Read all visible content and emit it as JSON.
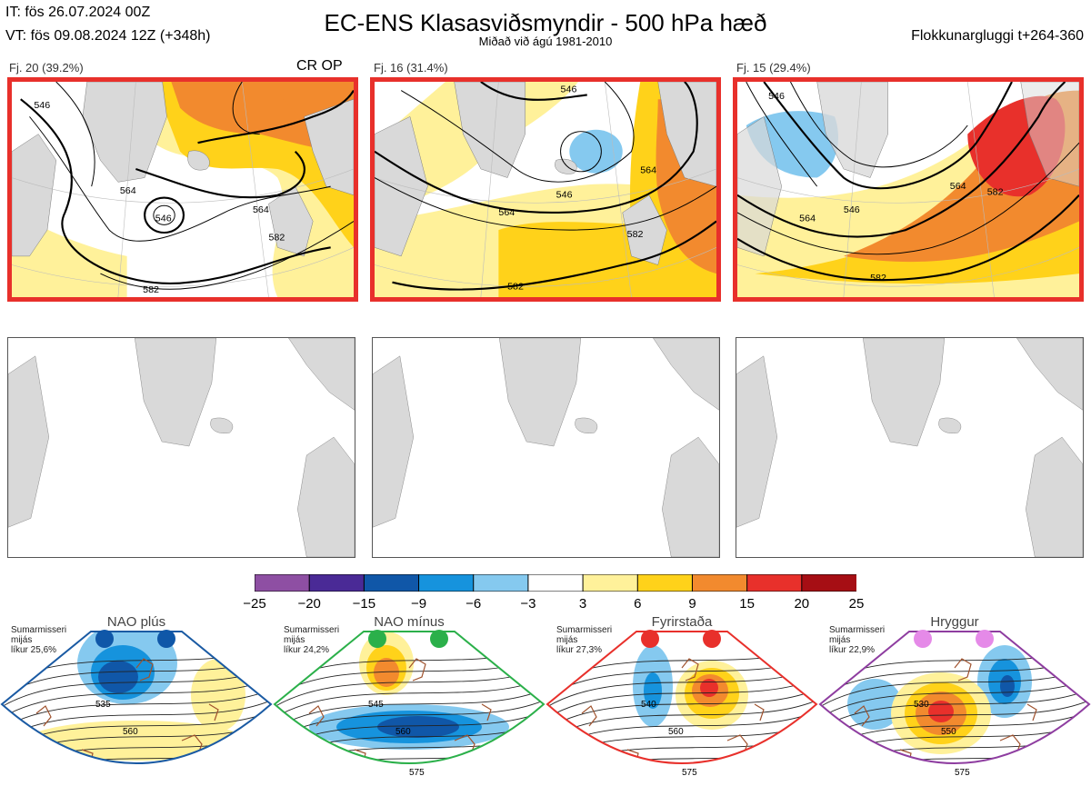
{
  "header": {
    "it_line": "IT: fös 26.07.2024 00Z",
    "vt_line": "VT: fös 09.08.2024 12Z  (+348h)",
    "title": "EC-ENS Klasasviðsmyndir - 500 hPa hæð",
    "subtitle": "Miðað við ágú 1981-2010",
    "window": "Flokkunargluggi t+264-360"
  },
  "clusters": [
    {
      "label": "Fj. 20 (39.2%)",
      "tag": "CR OP",
      "contours": [
        "546",
        "564",
        "582",
        "546",
        "564",
        "582"
      ]
    },
    {
      "label": "Fj. 16 (31.4%)",
      "tag": "",
      "contours": [
        "546",
        "564",
        "582",
        "564",
        "546",
        "582"
      ]
    },
    {
      "label": "Fj. 15 (29.4%)",
      "tag": "",
      "contours": [
        "546",
        "564",
        "582",
        "546",
        "564",
        "582"
      ]
    }
  ],
  "colorbar": {
    "ticks": [
      "−25",
      "−20",
      "−15",
      "−9",
      "−6",
      "−3",
      "3",
      "6",
      "9",
      "15",
      "20",
      "25"
    ],
    "colors": [
      "#8e4fa3",
      "#4a2a96",
      "#1057a8",
      "#1693dd",
      "#85c9ef",
      "#ffffff",
      "#fff19a",
      "#ffd21a",
      "#f28a2e",
      "#e8302b",
      "#a60e14"
    ]
  },
  "regimes": [
    {
      "name": "NAO plús",
      "season": "Sumarmisseri",
      "line2": "mijás",
      "likur": "líkur 25,6%",
      "dot_color": "#0f57a8",
      "frame_color": "#1a5aa3",
      "contours": [
        "535",
        "560"
      ]
    },
    {
      "name": "NAO mínus",
      "season": "Sumarmisseri",
      "line2": "mijás",
      "likur": "líkur 24,2%",
      "dot_color": "#2bb04a",
      "frame_color": "#2bb04a",
      "contours": [
        "545",
        "560",
        "575"
      ]
    },
    {
      "name": "Fyrirstaða",
      "season": "Sumarmisseri",
      "line2": "mijás",
      "likur": "líkur 27,3%",
      "dot_color": "#e8302b",
      "frame_color": "#e8302b",
      "contours": [
        "540",
        "560",
        "575"
      ]
    },
    {
      "name": "Hryggur",
      "season": "Sumarmisseri",
      "line2": "mijás",
      "likur": "líkur 22,9%",
      "dot_color": "#e58ae8",
      "frame_color": "#8e3da0",
      "contours": [
        "530",
        "550",
        "575"
      ]
    }
  ]
}
